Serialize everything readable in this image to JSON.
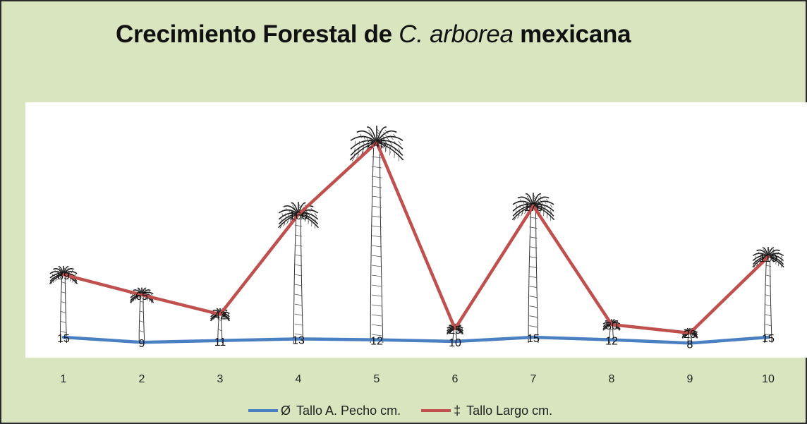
{
  "chart_data": {
    "type": "line",
    "title": {
      "part1": "Crecimiento Forestal de",
      "part2": "C. arborea",
      "part3": "mexicana"
    },
    "categories": [
      "1",
      "2",
      "3",
      "4",
      "5",
      "6",
      "7",
      "8",
      "9",
      "10"
    ],
    "series": [
      {
        "name": "Tallo A. Pecho cm.",
        "symbol": "Ø",
        "color": "#4a7fc1",
        "values": [
          15,
          9,
          11,
          13,
          12,
          10,
          15,
          12,
          8,
          15
        ]
      },
      {
        "name": "Tallo Largo cm.",
        "symbol": "‡",
        "color": "#c0504d",
        "values": [
          89,
          65,
          42,
          160,
          245,
          25,
          170,
          30,
          20,
          110
        ]
      }
    ],
    "ylim": [
      0,
      270
    ],
    "grid": false,
    "legend_position": "bottom",
    "background_color": "#d9e5bf",
    "plot_background": "#ffffff",
    "decoration": "palm-tree-illustration"
  }
}
